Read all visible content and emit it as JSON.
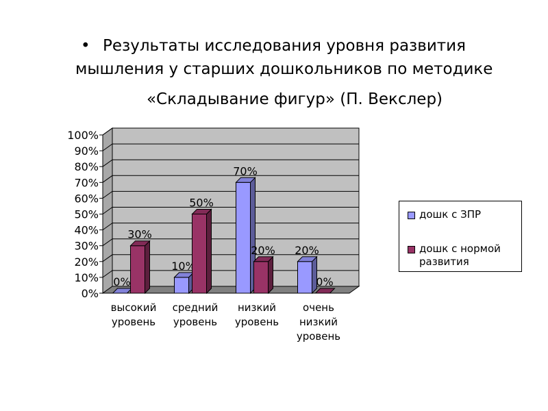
{
  "title": {
    "bullet": "•",
    "line1": "Результаты исследования уровня развития",
    "line2": "мышления у старших дошкольников по методике",
    "line3": "«Складывание фигур» (П. Векслер)"
  },
  "chart_data": {
    "type": "bar",
    "categories": [
      [
        "высокий",
        "уровень"
      ],
      [
        "средний",
        "уровень"
      ],
      [
        "низкий",
        "уровень"
      ],
      [
        "очень",
        "низкий",
        "уровень"
      ]
    ],
    "series": [
      {
        "name": "дошк с ЗПР",
        "values": [
          0,
          10,
          70,
          20
        ],
        "color": "#9999ff"
      },
      {
        "name": "дошк с нормой развития",
        "values": [
          30,
          50,
          20,
          0
        ],
        "color": "#993366"
      }
    ],
    "data_labels": [
      [
        "0%",
        "10%",
        "70%",
        "20%"
      ],
      [
        "30%",
        "50%",
        "20%",
        "0%"
      ]
    ],
    "y_ticks": [
      "0%",
      "10%",
      "20%",
      "30%",
      "40%",
      "50%",
      "60%",
      "70%",
      "80%",
      "90%",
      "100%"
    ],
    "ylim": [
      0,
      100
    ],
    "grid": true,
    "legend_position": "right",
    "wall_color": "#c0c0c0"
  }
}
